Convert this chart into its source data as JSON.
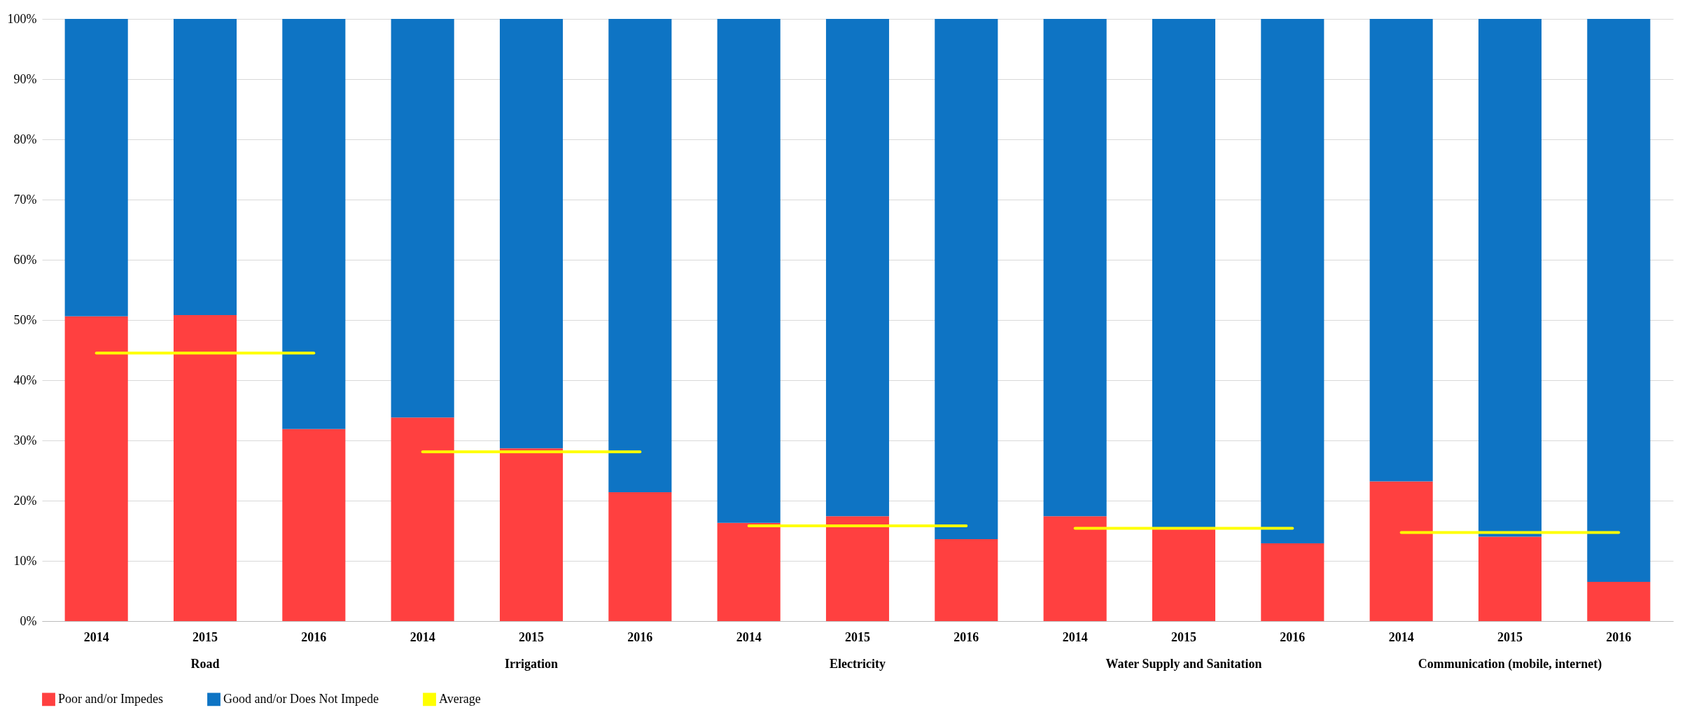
{
  "chart_data": {
    "type": "bar",
    "stacked": true,
    "categories": [
      "2014",
      "2015",
      "2016",
      "2014",
      "2015",
      "2016",
      "2014",
      "2015",
      "2016",
      "2014",
      "2015",
      "2016",
      "2014",
      "2015",
      "2016"
    ],
    "annotations": [
      "Road",
      "Irrigation",
      "Electricity",
      "Water Supply and Sanitation",
      "Communication (mobile, internet)"
    ],
    "series": [
      {
        "name": "Poor and/or Impedes",
        "color": "#ff4040",
        "values": [
          50.6,
          50.8,
          31.9,
          33.8,
          28.7,
          21.4,
          16.3,
          17.4,
          13.6,
          17.4,
          15.3,
          12.9,
          23.2,
          14.0,
          6.5
        ]
      },
      {
        "name": "Good and/or Does Not Impede",
        "color": "#0e74c4",
        "values": [
          49.4,
          49.2,
          68.1,
          66.2,
          71.3,
          78.6,
          83.7,
          82.6,
          86.4,
          82.6,
          84.7,
          87.1,
          76.8,
          86.0,
          93.5
        ]
      },
      {
        "name": "Average",
        "type": "line",
        "color": "#ffff00",
        "values": [
          44.5,
          44.5,
          44.5,
          28.1,
          28.1,
          28.1,
          15.8,
          15.8,
          15.8,
          15.4,
          15.4,
          15.4,
          14.7,
          14.7,
          14.7
        ]
      }
    ],
    "ylim": [
      0,
      100
    ],
    "yticks": [
      {
        "value": 0,
        "label": "0%"
      },
      {
        "value": 10,
        "label": "10%"
      },
      {
        "value": 20,
        "label": "20%"
      },
      {
        "value": 30,
        "label": "30%"
      },
      {
        "value": 40,
        "label": "40%"
      },
      {
        "value": 50,
        "label": "50%"
      },
      {
        "value": 60,
        "label": "60%"
      },
      {
        "value": 70,
        "label": "70%"
      },
      {
        "value": 80,
        "label": "80%"
      },
      {
        "value": 90,
        "label": "90%"
      },
      {
        "value": 100,
        "label": "100%"
      }
    ],
    "grid": "y",
    "legend": "bottom"
  }
}
